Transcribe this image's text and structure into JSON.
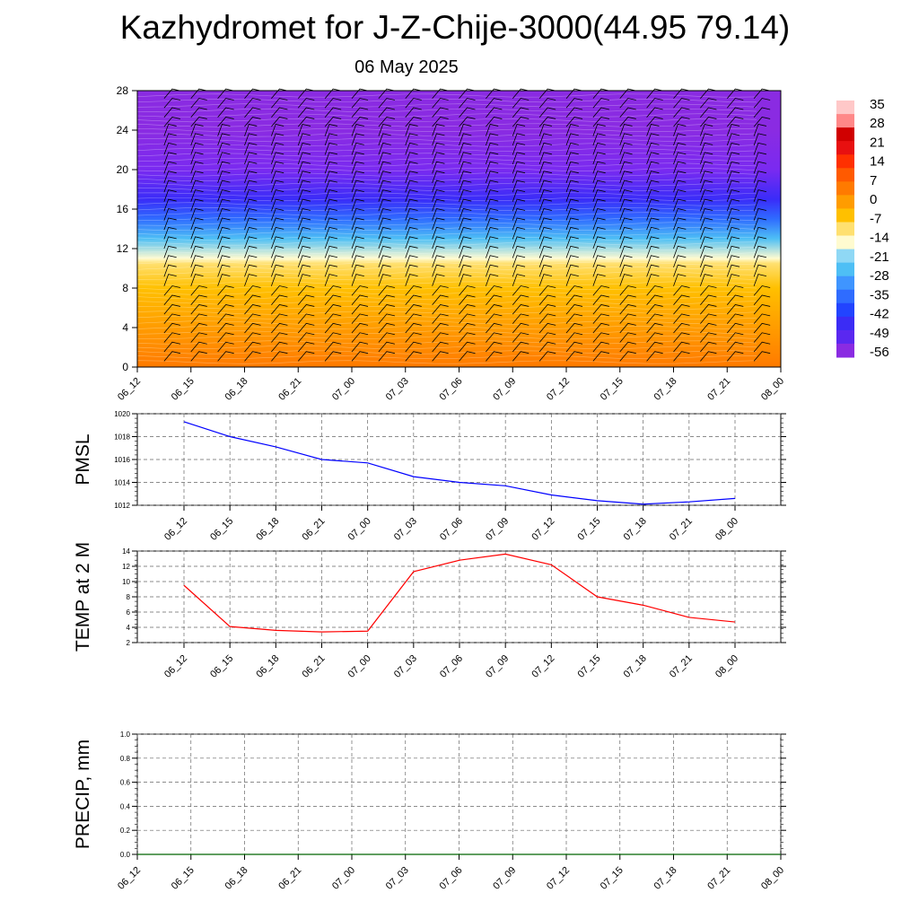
{
  "title": "Kazhydromet for J-Z-Chije-3000(44.95 79.14)",
  "subtitle": "06 May 2025",
  "chart_data": [
    {
      "type": "heatmap",
      "panel": "vertical cross-section (temperature shading with wind barbs)",
      "x_ticks": [
        "06_12",
        "06_15",
        "06_18",
        "06_21",
        "07_00",
        "07_03",
        "07_06",
        "07_09",
        "07_12",
        "07_15",
        "07_18",
        "07_21",
        "08_00"
      ],
      "y_ticks": [
        0,
        4,
        8,
        12,
        16,
        20,
        24,
        28
      ],
      "ylim": [
        0,
        28
      ],
      "colorbar": {
        "labels": [
          35,
          28,
          21,
          14,
          7,
          0,
          -7,
          -14,
          -21,
          -28,
          -35,
          -42,
          -49,
          -56
        ],
        "colors": [
          "#8a2be2",
          "#5a28f0",
          "#3b2cf5",
          "#2244ff",
          "#2f6cff",
          "#3f95ff",
          "#4ebff5",
          "#8fd8f5",
          "#fffbd0",
          "#ffe070",
          "#ffc000",
          "#ff9c00",
          "#ff7a00",
          "#ff5a00",
          "#ff3000",
          "#e81010",
          "#d00000",
          "#ff8888",
          "#ffc8c8"
        ]
      },
      "temperature_profile": [
        {
          "height": 0,
          "temp": 14
        },
        {
          "height": 4,
          "temp": 10
        },
        {
          "height": 8,
          "temp": 2
        },
        {
          "height": 10.5,
          "temp": -7
        },
        {
          "height": 11,
          "temp": -14
        },
        {
          "height": 13,
          "temp": -28
        },
        {
          "height": 15,
          "temp": -42
        },
        {
          "height": 17,
          "temp": -52
        },
        {
          "height": 20,
          "temp": -55
        },
        {
          "height": 24,
          "temp": -58
        },
        {
          "height": 28,
          "temp": -60
        }
      ]
    },
    {
      "type": "line",
      "panel": "PMSL",
      "ylabel": "PMSL",
      "ylim": [
        1012,
        1020
      ],
      "y_ticks": [
        1012,
        1014,
        1016,
        1018,
        1020
      ],
      "x": [
        "06_12",
        "06_15",
        "06_18",
        "06_21",
        "07_00",
        "07_03",
        "07_06",
        "07_09",
        "07_12",
        "07_15",
        "07_18",
        "07_21",
        "08_00"
      ],
      "values": [
        1019.3,
        1018.0,
        1017.1,
        1016.0,
        1015.7,
        1014.5,
        1014.0,
        1013.7,
        1012.9,
        1012.4,
        1012.1,
        1012.3,
        1012.6
      ],
      "color": "#0000ff"
    },
    {
      "type": "line",
      "panel": "TEMP at 2 M",
      "ylabel": "TEMP at 2 M",
      "ylim": [
        2,
        14
      ],
      "y_ticks": [
        2,
        4,
        6,
        8,
        10,
        12,
        14
      ],
      "x": [
        "06_12",
        "06_15",
        "06_18",
        "06_21",
        "07_00",
        "07_03",
        "07_06",
        "07_09",
        "07_12",
        "07_15",
        "07_18",
        "07_21",
        "08_00"
      ],
      "values": [
        9.5,
        4.1,
        3.6,
        3.4,
        3.5,
        11.3,
        12.8,
        13.6,
        12.2,
        8.0,
        6.9,
        5.3,
        4.7
      ],
      "color": "#ff0000"
    },
    {
      "type": "line",
      "panel": "PRECIP, mm",
      "ylabel": "PRECIP, mm",
      "ylim": [
        0.0,
        1.0
      ],
      "y_ticks": [
        "0.0",
        "0.2",
        "0.4",
        "0.6",
        "0.8",
        "1.0"
      ],
      "x": [
        "06_12",
        "06_15",
        "06_18",
        "06_21",
        "07_00",
        "07_03",
        "07_06",
        "07_09",
        "07_12",
        "07_15",
        "07_18",
        "07_21",
        "08_00"
      ],
      "values": [
        0,
        0,
        0,
        0,
        0,
        0,
        0,
        0,
        0,
        0,
        0,
        0,
        0
      ],
      "color": "#006400"
    }
  ]
}
